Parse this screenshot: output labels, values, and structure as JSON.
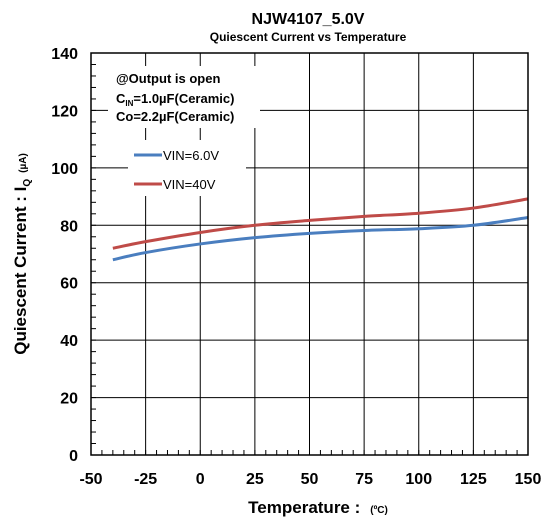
{
  "chart_data": {
    "type": "line",
    "title": "NJW4107_5.0V",
    "subtitle": "Quiescent Current vs Temperature",
    "xlabel": "Temperature :",
    "xlabel_unit": "(ºC)",
    "ylabel": "Quiescent Current : I",
    "ylabel_sub": "Q",
    "ylabel_unit": "(µA)",
    "xlim": [
      -50,
      150
    ],
    "ylim": [
      0,
      140
    ],
    "xticks": [
      -50,
      -25,
      0,
      25,
      50,
      75,
      100,
      125,
      150
    ],
    "yticks": [
      0,
      20,
      40,
      60,
      80,
      100,
      120,
      140
    ],
    "xtick_labels": [
      "-50",
      "-25",
      "0",
      "25",
      "50",
      "75",
      "100",
      "125",
      "150"
    ],
    "ytick_labels": [
      "0",
      "20",
      "40",
      "60",
      "80",
      "100",
      "120",
      "140"
    ],
    "grid": true,
    "legend_position": "upper-left",
    "annotation": {
      "line1": "@Output is open",
      "line2_pre": "C",
      "line2_sub": "IN",
      "line2_post": "=1.0µF(Ceramic)",
      "line3": "Co=2.2µF(Ceramic)"
    },
    "series": [
      {
        "name": "VIN=6.0V",
        "color": "#4a7ebf",
        "x": [
          -40,
          -25,
          0,
          25,
          50,
          75,
          100,
          125,
          150
        ],
        "y": [
          68,
          70.5,
          73.5,
          75.7,
          77.2,
          78.2,
          78.8,
          80.0,
          82.7
        ]
      },
      {
        "name": "VIN=40V",
        "color": "#bf4b48",
        "x": [
          -40,
          -25,
          0,
          25,
          50,
          75,
          100,
          125,
          150
        ],
        "y": [
          72,
          74.3,
          77.5,
          80.0,
          81.7,
          83.1,
          84.2,
          86.0,
          89.2
        ]
      }
    ]
  }
}
